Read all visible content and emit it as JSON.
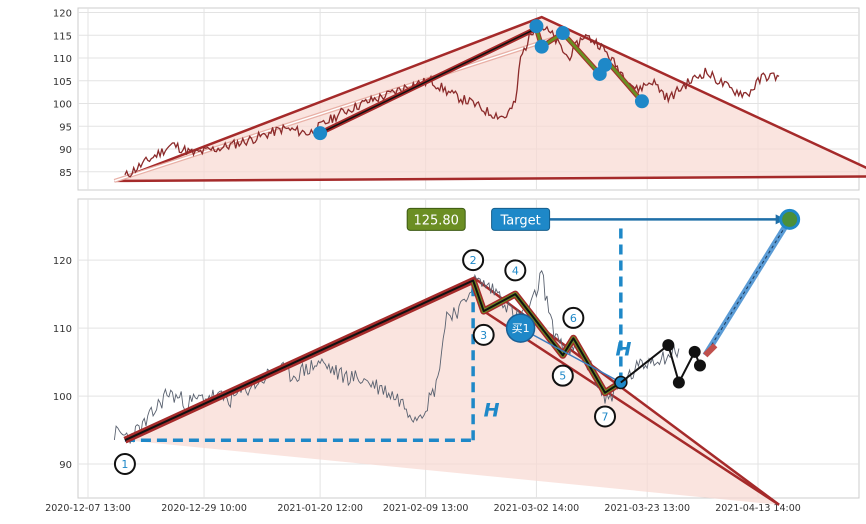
{
  "chart_data": [
    {
      "type": "line",
      "panel": "upper",
      "ylim": [
        81,
        121
      ],
      "y_ticks": [
        "85",
        "90",
        "95",
        "100",
        "105",
        "110",
        "115",
        "120"
      ],
      "grid": true,
      "x_range": [
        "2020-12-07 13:00",
        "2021-04-13 14:00"
      ],
      "colors": {
        "price": "#8b2a2a",
        "wave": "#a52a2a",
        "wave_inner": "#6b8e23",
        "marker": "#1e88c8",
        "fill": "#f8d9d2"
      },
      "price_anchors": [
        [
          "2020-12-14",
          84
        ],
        [
          "2020-12-19",
          88
        ],
        [
          "2020-12-23",
          91
        ],
        [
          "2020-12-27",
          89
        ],
        [
          "2021-01-02",
          90.5
        ],
        [
          "2021-01-08",
          92.5
        ],
        [
          "2021-01-13",
          94.5
        ],
        [
          "2021-01-18",
          93.5
        ],
        [
          "2021-01-24",
          98
        ],
        [
          "2021-01-28",
          100
        ],
        [
          "2021-02-02",
          102
        ],
        [
          "2021-02-06",
          104
        ],
        [
          "2021-02-10",
          105
        ],
        [
          "2021-02-14",
          102
        ],
        [
          "2021-02-18",
          100
        ],
        [
          "2021-02-21",
          98
        ],
        [
          "2021-02-24",
          97
        ],
        [
          "2021-02-26",
          100
        ],
        [
          "2021-02-27",
          110
        ],
        [
          "2021-03-02",
          118
        ],
        [
          "2021-03-05",
          115
        ],
        [
          "2021-03-08",
          110
        ],
        [
          "2021-03-11",
          115
        ],
        [
          "2021-03-14",
          113
        ],
        [
          "2021-03-18",
          107
        ],
        [
          "2021-03-21",
          103
        ],
        [
          "2021-03-24",
          105
        ],
        [
          "2021-03-27",
          101
        ],
        [
          "2021-03-30",
          104
        ],
        [
          "2021-04-03",
          107
        ],
        [
          "2021-04-08",
          103
        ],
        [
          "2021-04-11",
          102
        ],
        [
          "2021-04-14",
          106
        ],
        [
          "2021-04-17",
          106
        ]
      ],
      "zigzag": [
        [
          "2021-01-20",
          93.5
        ],
        [
          "2021-03-02",
          116.5
        ],
        [
          "2021-03-03",
          112.5
        ],
        [
          "2021-03-07",
          115.5
        ],
        [
          "2021-03-14",
          106.5
        ],
        [
          "2021-03-16",
          108.5
        ],
        [
          "2021-03-22",
          100.5
        ]
      ],
      "markers": [
        [
          "2021-01-20",
          93.5
        ],
        [
          "2021-03-02",
          117
        ],
        [
          "2021-03-03",
          112.5
        ],
        [
          "2021-03-07",
          115.5
        ],
        [
          "2021-03-14",
          106.5
        ],
        [
          "2021-03-15",
          108.5
        ],
        [
          "2021-03-22",
          100.5
        ]
      ],
      "channel": {
        "start": [
          "2020-12-12",
          83
        ],
        "peak": [
          "2021-03-03",
          119
        ],
        "end": [
          "2021-05-07",
          84
        ]
      },
      "pointer": {
        "from": [
          "2020-12-12",
          83
        ],
        "to": [
          "2021-03-07",
          115
        ]
      }
    },
    {
      "type": "line",
      "panel": "lower",
      "ylim": [
        85,
        129
      ],
      "y_ticks": [
        "90",
        "100",
        "110",
        "120"
      ],
      "grid": true,
      "x_tick_labels": [
        "2020-12-07 13:00",
        "2020-12-29 10:00",
        "2021-01-20 12:00",
        "2021-02-09 13:00",
        "2021-03-02 14:00",
        "2021-03-23 13:00",
        "2021-04-13 14:00"
      ],
      "x_tick_dates": [
        "2020-12-07",
        "2020-12-29",
        "2021-01-20",
        "2021-02-09",
        "2021-03-02",
        "2021-03-23",
        "2021-04-13"
      ],
      "colors": {
        "price": "#5a6270",
        "wave": "#a52a2a",
        "wave_inner": "#6b8e23",
        "accent": "#1e88c8",
        "black": "#111111",
        "fill": "#f8d9d2"
      },
      "price_anchors": [
        [
          "2020-12-12",
          94.5
        ],
        [
          "2020-12-15",
          94
        ],
        [
          "2020-12-18",
          96
        ],
        [
          "2020-12-22",
          100.5
        ],
        [
          "2020-12-26",
          99
        ],
        [
          "2020-12-30",
          100
        ],
        [
          "2021-01-03",
          99.5
        ],
        [
          "2021-01-07",
          101.5
        ],
        [
          "2021-01-12",
          104
        ],
        [
          "2021-01-15",
          103
        ],
        [
          "2021-01-20",
          105
        ],
        [
          "2021-01-24",
          103
        ],
        [
          "2021-01-28",
          102.5
        ],
        [
          "2021-02-01",
          101
        ],
        [
          "2021-02-04",
          99.5
        ],
        [
          "2021-02-07",
          97
        ],
        [
          "2021-02-09",
          98.5
        ],
        [
          "2021-02-11",
          101.5
        ],
        [
          "2021-02-13",
          112
        ],
        [
          "2021-02-16",
          113
        ],
        [
          "2021-02-18",
          117
        ],
        [
          "2021-02-20",
          116.5
        ],
        [
          "2021-02-23",
          115
        ],
        [
          "2021-02-26",
          111.5
        ],
        [
          "2021-03-01",
          113
        ],
        [
          "2021-03-03",
          118
        ],
        [
          "2021-03-05",
          110
        ],
        [
          "2021-03-08",
          106.5
        ],
        [
          "2021-03-10",
          107
        ],
        [
          "2021-03-13",
          103
        ],
        [
          "2021-03-15",
          99.5
        ],
        [
          "2021-03-18",
          101.5
        ],
        [
          "2021-03-21",
          104
        ],
        [
          "2021-03-24",
          105.5
        ],
        [
          "2021-03-27",
          106
        ],
        [
          "2021-03-29",
          107
        ]
      ],
      "zigzag": [
        [
          "2020-12-14",
          93.5
        ],
        [
          "2021-02-18",
          117
        ],
        [
          "2021-02-20",
          112.5
        ],
        [
          "2021-02-26",
          115
        ],
        [
          "2021-03-07",
          106
        ],
        [
          "2021-03-09",
          108.5
        ],
        [
          "2021-03-15",
          100.5
        ],
        [
          "2021-03-18",
          102
        ]
      ],
      "wave_points": [
        {
          "label": "1",
          "x": "2020-12-14",
          "y": 93.5,
          "lx": "2020-12-14",
          "ly": 90
        },
        {
          "label": "2",
          "x": "2021-02-18",
          "y": 117,
          "lx": "2021-02-18",
          "ly": 120
        },
        {
          "label": "3",
          "x": "2021-02-20",
          "y": 112.5,
          "lx": "2021-02-20",
          "ly": 109
        },
        {
          "label": "4",
          "x": "2021-02-26",
          "y": 115,
          "lx": "2021-02-26",
          "ly": 118.5
        },
        {
          "label": "5",
          "x": "2021-03-07",
          "y": 106,
          "lx": "2021-03-07",
          "ly": 103
        },
        {
          "label": "6",
          "x": "2021-03-09",
          "y": 108.5,
          "lx": "2021-03-09",
          "ly": 111.5
        },
        {
          "label": "7",
          "x": "2021-03-15",
          "y": 100.5,
          "lx": "2021-03-15",
          "ly": 97
        }
      ],
      "channel": {
        "start": [
          "2020-12-14",
          93.5
        ],
        "peak": [
          "2021-02-18",
          117.5
        ],
        "end": [
          "2021-04-17",
          84
        ]
      },
      "buy_signal": {
        "label": "买1",
        "x": "2021-02-27",
        "y": 110
      },
      "buy_line_end": [
        "2021-03-18",
        102
      ],
      "projection": [
        [
          "2021-03-27",
          107.5
        ],
        [
          "2021-03-29",
          102
        ],
        [
          "2021-04-01",
          106.5
        ],
        [
          "2021-04-02",
          104.5
        ]
      ],
      "target_point": [
        "2021-04-19",
        126
      ],
      "target_start": [
        "2021-04-03",
        106
      ],
      "price_tag": {
        "text": "125.80",
        "x": "2021-02-11",
        "y": 126
      },
      "target_label": {
        "text": "Target",
        "x": "2021-02-27",
        "y": 126
      },
      "target_arrow_from": [
        "2021-03-02",
        126
      ],
      "height_markers": [
        {
          "label": "H",
          "bottom": [
            "2020-12-14",
            93.5
          ],
          "x": "2021-02-18",
          "top_y": 117,
          "lx": "2021-02-20",
          "ly": 97
        },
        {
          "label": "H",
          "bottom": [
            "2021-03-18",
            102
          ],
          "x": "2021-03-18",
          "top_y": 125,
          "lx": "2021-03-17",
          "ly": 106
        }
      ]
    }
  ]
}
